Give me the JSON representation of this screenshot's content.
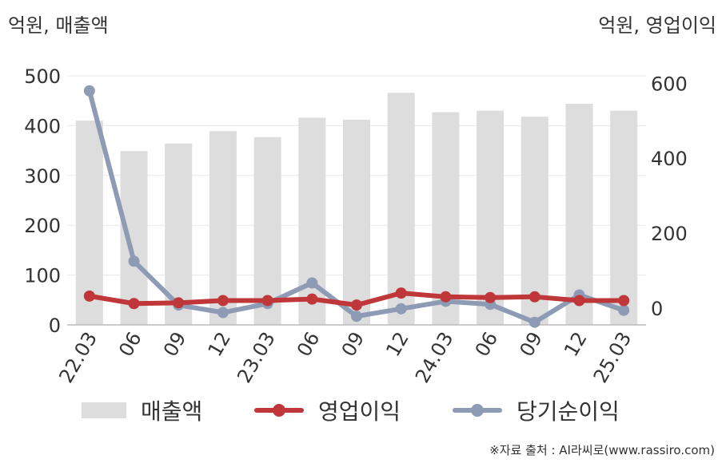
{
  "colors": {
    "bar": "#dddddd",
    "operating_profit": "#c0373a",
    "net_income": "#8e9bb5",
    "grid": "#e8e8e8",
    "axis": "#bbbbbb",
    "text": "#333333"
  },
  "chart_data": {
    "type": "bar",
    "categories": [
      "22.03",
      "06",
      "09",
      "12",
      "23.03",
      "06",
      "09",
      "12",
      "24.03",
      "06",
      "09",
      "12",
      "25.03"
    ],
    "y_left": {
      "label": "억원, 매출액",
      "range": [
        0,
        500
      ],
      "ticks": [
        0,
        100,
        200,
        300,
        400,
        500
      ]
    },
    "y_right": {
      "label": "억원, 영업이익",
      "range": [
        -45,
        620
      ],
      "ticks": [
        0,
        200,
        400,
        600
      ]
    },
    "series": [
      {
        "name": "매출액",
        "type": "bar",
        "axis": "left",
        "values": [
          410,
          349,
          364,
          389,
          377,
          416,
          412,
          466,
          427,
          430,
          418,
          444,
          430
        ]
      },
      {
        "name": "영업이익",
        "type": "line",
        "axis": "right",
        "values": [
          32,
          12,
          14,
          20,
          20,
          24,
          8,
          40,
          30,
          28,
          30,
          20,
          20
        ]
      },
      {
        "name": "당기순이익",
        "type": "line",
        "axis": "right",
        "values": [
          580,
          125,
          8,
          -12,
          12,
          67,
          -22,
          -2,
          18,
          10,
          -38,
          35,
          -6
        ]
      }
    ],
    "grid": true,
    "legend_position": "bottom"
  },
  "source": "※자료 출처 : AI라씨로(www.rassiro.com)"
}
